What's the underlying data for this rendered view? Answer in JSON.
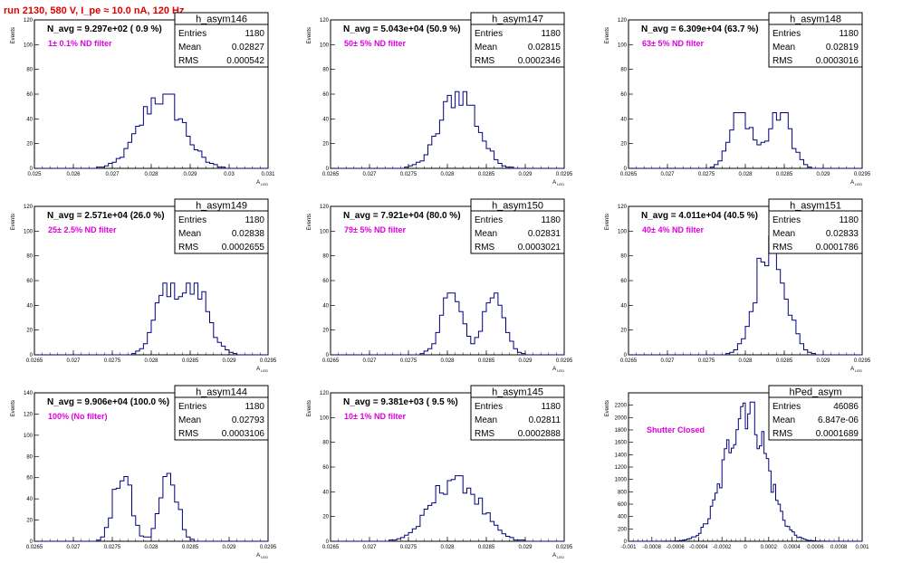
{
  "page_title": "run 2130,   580 V, I_pe ≈ 10.0 nA, 120 Hz",
  "stat_labels": {
    "entries": "Entries",
    "mean": "Mean",
    "rms": "RMS"
  },
  "chart_data": [
    {
      "type": "histogram",
      "name": "h_asym146",
      "annotation": "N_avg = 9.297e+02 ( 0.9 %)",
      "filter": "1± 0.1% ND filter",
      "entries": "1180",
      "mean": "0.02827",
      "rms": "0.000542",
      "xlim": [
        0.025,
        0.031
      ],
      "xticks": [
        "0.025",
        "0.026",
        "0.027",
        "0.028",
        "0.029",
        "0.03",
        "0.031"
      ],
      "xlabel": "A_{LED}",
      "ylim": [
        0,
        120
      ],
      "yticks": [
        "0",
        "20",
        "40",
        "60",
        "80",
        "100",
        "120"
      ],
      "ylabel": "Events",
      "bins": 60,
      "peaks": [
        {
          "mu": 0.02827,
          "sigma": 0.00054,
          "amp": 1
        }
      ],
      "ymax_data": 60
    },
    {
      "type": "histogram",
      "name": "h_asym147",
      "annotation": "N_avg = 5.043e+04 (50.9 %)",
      "filter": "50± 5% ND filter",
      "entries": "1180",
      "mean": "0.02815",
      "rms": "0.0002346",
      "xlim": [
        0.0265,
        0.0295
      ],
      "xticks": [
        "0.0265",
        "0.027",
        "0.0275",
        "0.028",
        "0.0285",
        "0.029",
        "0.0295"
      ],
      "xlabel": "A_{LED}",
      "ylim": [
        0,
        120
      ],
      "yticks": [
        "0",
        "20",
        "40",
        "60",
        "80",
        "100",
        "120"
      ],
      "ylabel": "Events",
      "bins": 60,
      "peaks": [
        {
          "mu": 0.02815,
          "sigma": 0.00023,
          "amp": 1
        }
      ],
      "ymax_data": 62
    },
    {
      "type": "histogram",
      "name": "h_asym148",
      "annotation": "N_avg = 6.309e+04 (63.7 %)",
      "filter": "63± 5% ND filter",
      "entries": "1180",
      "mean": "0.02819",
      "rms": "0.0003016",
      "xlim": [
        0.0265,
        0.0295
      ],
      "xticks": [
        "0.0265",
        "0.027",
        "0.0275",
        "0.028",
        "0.0285",
        "0.029",
        "0.0295"
      ],
      "xlabel": "A_{LED}",
      "ylim": [
        0,
        120
      ],
      "yticks": [
        "0",
        "20",
        "40",
        "60",
        "80",
        "100",
        "120"
      ],
      "ylabel": "Events",
      "bins": 60,
      "peaks": [
        {
          "mu": 0.02795,
          "sigma": 0.00014,
          "amp": 1
        },
        {
          "mu": 0.02845,
          "sigma": 0.00014,
          "amp": 1
        }
      ],
      "ymax_data": 45
    },
    {
      "type": "histogram",
      "name": "h_asym149",
      "annotation": "N_avg = 2.571e+04 (26.0 %)",
      "filter": "25± 2.5% ND filter",
      "entries": "1180",
      "mean": "0.02838",
      "rms": "0.0002655",
      "xlim": [
        0.0265,
        0.0295
      ],
      "xticks": [
        "0.0265",
        "0.027",
        "0.0275",
        "0.028",
        "0.0285",
        "0.029",
        "0.0295"
      ],
      "xlabel": "A_{LED}",
      "ylim": [
        0,
        120
      ],
      "yticks": [
        "0",
        "20",
        "40",
        "60",
        "80",
        "100",
        "120"
      ],
      "ylabel": "Events",
      "bins": 60,
      "peaks": [
        {
          "mu": 0.02822,
          "sigma": 0.00016,
          "amp": 1
        },
        {
          "mu": 0.0286,
          "sigma": 0.00016,
          "amp": 0.9
        }
      ],
      "ymax_data": 58
    },
    {
      "type": "histogram",
      "name": "h_asym150",
      "annotation": "N_avg = 7.921e+04 (80.0 %)",
      "filter": "79± 5% ND filter",
      "entries": "1180",
      "mean": "0.02831",
      "rms": "0.0003021",
      "xlim": [
        0.0265,
        0.0295
      ],
      "xticks": [
        "0.0265",
        "0.027",
        "0.0275",
        "0.028",
        "0.0285",
        "0.029",
        "0.0295"
      ],
      "xlabel": "A_{LED}",
      "ylim": [
        0,
        120
      ],
      "yticks": [
        "0",
        "20",
        "40",
        "60",
        "80",
        "100",
        "120"
      ],
      "ylabel": "Events",
      "bins": 60,
      "peaks": [
        {
          "mu": 0.02805,
          "sigma": 0.00013,
          "amp": 1
        },
        {
          "mu": 0.0286,
          "sigma": 0.00013,
          "amp": 1
        }
      ],
      "ymax_data": 50
    },
    {
      "type": "histogram",
      "name": "h_asym151",
      "annotation": "N_avg = 4.011e+04 (40.5 %)",
      "filter": "40± 4% ND filter",
      "entries": "1180",
      "mean": "0.02833",
      "rms": "0.0001786",
      "xlim": [
        0.0265,
        0.0295
      ],
      "xticks": [
        "0.0265",
        "0.027",
        "0.0275",
        "0.028",
        "0.0285",
        "0.029",
        "0.0295"
      ],
      "xlabel": "A_{LED}",
      "ylim": [
        0,
        120
      ],
      "yticks": [
        "0",
        "20",
        "40",
        "60",
        "80",
        "100",
        "120"
      ],
      "ylabel": "Events",
      "bins": 60,
      "peaks": [
        {
          "mu": 0.02833,
          "sigma": 0.00018,
          "amp": 1
        }
      ],
      "ymax_data": 96
    },
    {
      "type": "histogram",
      "name": "h_asym144",
      "annotation": "N_avg = 9.906e+04 (100.0 %)",
      "filter": "100% (No filter)",
      "entries": "1180",
      "mean": "0.02793",
      "rms": "0.0003106",
      "xlim": [
        0.0265,
        0.0295
      ],
      "xticks": [
        "0.0265",
        "0.027",
        "0.0275",
        "0.028",
        "0.0285",
        "0.029",
        "0.0295"
      ],
      "xlabel": "A_{LED}",
      "ylim": [
        0,
        140
      ],
      "yticks": [
        "0",
        "20",
        "40",
        "60",
        "80",
        "100",
        "120",
        "140"
      ],
      "ylabel": "Events",
      "bins": 60,
      "peaks": [
        {
          "mu": 0.02763,
          "sigma": 0.00011,
          "amp": 1
        },
        {
          "mu": 0.02823,
          "sigma": 0.00011,
          "amp": 1
        }
      ],
      "ymax_data": 64
    },
    {
      "type": "histogram",
      "name": "h_asym145",
      "annotation": "N_avg = 9.381e+03 ( 9.5 %)",
      "filter": "10± 1% ND filter",
      "entries": "1180",
      "mean": "0.02811",
      "rms": "0.0002888",
      "xlim": [
        0.0265,
        0.0295
      ],
      "xticks": [
        "0.0265",
        "0.027",
        "0.0275",
        "0.028",
        "0.0285",
        "0.029",
        "0.0295"
      ],
      "xlabel": "A_{LED}",
      "ylim": [
        0,
        120
      ],
      "yticks": [
        "0",
        "20",
        "40",
        "60",
        "80",
        "100",
        "120"
      ],
      "ylabel": "Events",
      "bins": 60,
      "peaks": [
        {
          "mu": 0.02811,
          "sigma": 0.00029,
          "amp": 1
        }
      ],
      "ymax_data": 53
    },
    {
      "type": "histogram",
      "name": "hPed_asym",
      "annotation": "",
      "filter": "Shutter Closed",
      "entries": "46086",
      "mean": "6.847e-06",
      "rms": "0.0001689",
      "xlim": [
        -0.001,
        0.001
      ],
      "xticks": [
        "-0.001",
        "-0.0008",
        "-0.0006",
        "-0.0004",
        "-0.0002",
        "0",
        "0.0002",
        "0.0004",
        "0.0006",
        "0.0008",
        "0.001"
      ],
      "xlabel": "",
      "ylim": [
        0,
        2400
      ],
      "yticks": [
        "0",
        "200",
        "400",
        "600",
        "800",
        "1000",
        "1200",
        "1400",
        "1600",
        "1800",
        "2000",
        "2200"
      ],
      "ylabel": "Events",
      "bins": 100,
      "peaks": [
        {
          "mu": 7e-06,
          "sigma": 0.00017,
          "amp": 1
        }
      ],
      "ymax_data": 2250
    }
  ]
}
